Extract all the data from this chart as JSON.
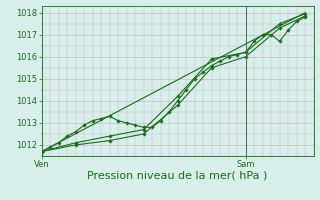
{
  "title": "",
  "xlabel": "Pression niveau de la mer( hPa )",
  "xtick_labels": [
    "Ven",
    "Sam"
  ],
  "xtick_positions": [
    0,
    24
  ],
  "ylim": [
    1011.5,
    1018.3
  ],
  "xlim": [
    0,
    32
  ],
  "yticks": [
    1012,
    1013,
    1014,
    1015,
    1016,
    1017,
    1018
  ],
  "bg_color": "#d8eeea",
  "grid_color": "#c8b8c8",
  "line_color": "#1a6b1a",
  "vline_color": "#556655",
  "vline_x": 24,
  "series0": {
    "x": [
      0,
      1,
      2,
      3,
      4,
      5,
      6,
      7,
      8,
      9,
      10,
      11,
      12,
      13,
      14,
      15,
      16,
      17,
      18,
      19,
      20,
      21,
      22,
      23,
      24,
      25,
      26,
      27,
      28,
      29,
      30,
      31
    ],
    "y": [
      1011.7,
      1011.9,
      1012.1,
      1012.4,
      1012.6,
      1012.9,
      1013.1,
      1013.2,
      1013.3,
      1013.1,
      1013.0,
      1012.9,
      1012.8,
      1012.8,
      1013.1,
      1013.5,
      1014.0,
      1014.5,
      1015.0,
      1015.3,
      1015.6,
      1015.8,
      1016.0,
      1016.1,
      1016.2,
      1016.7,
      1017.0,
      1017.0,
      1016.7,
      1017.2,
      1017.6,
      1017.8
    ]
  },
  "series1": {
    "x": [
      0,
      4,
      8,
      12,
      16,
      20,
      24,
      28,
      31
    ],
    "y": [
      1011.7,
      1012.0,
      1012.2,
      1012.5,
      1013.8,
      1015.5,
      1016.0,
      1017.3,
      1017.85
    ]
  },
  "series2": {
    "x": [
      0,
      4,
      8,
      12,
      16,
      20,
      24,
      28,
      31
    ],
    "y": [
      1011.7,
      1012.1,
      1012.4,
      1012.7,
      1014.2,
      1015.9,
      1016.2,
      1017.5,
      1017.95
    ]
  },
  "series3": {
    "x": [
      0,
      31
    ],
    "y": [
      1011.7,
      1018.0
    ]
  },
  "marker": "D",
  "markersize": 1.8,
  "linewidth": 0.8,
  "fontsize_xlabel": 8,
  "fontsize_ytick": 6,
  "fontsize_xtick": 6
}
